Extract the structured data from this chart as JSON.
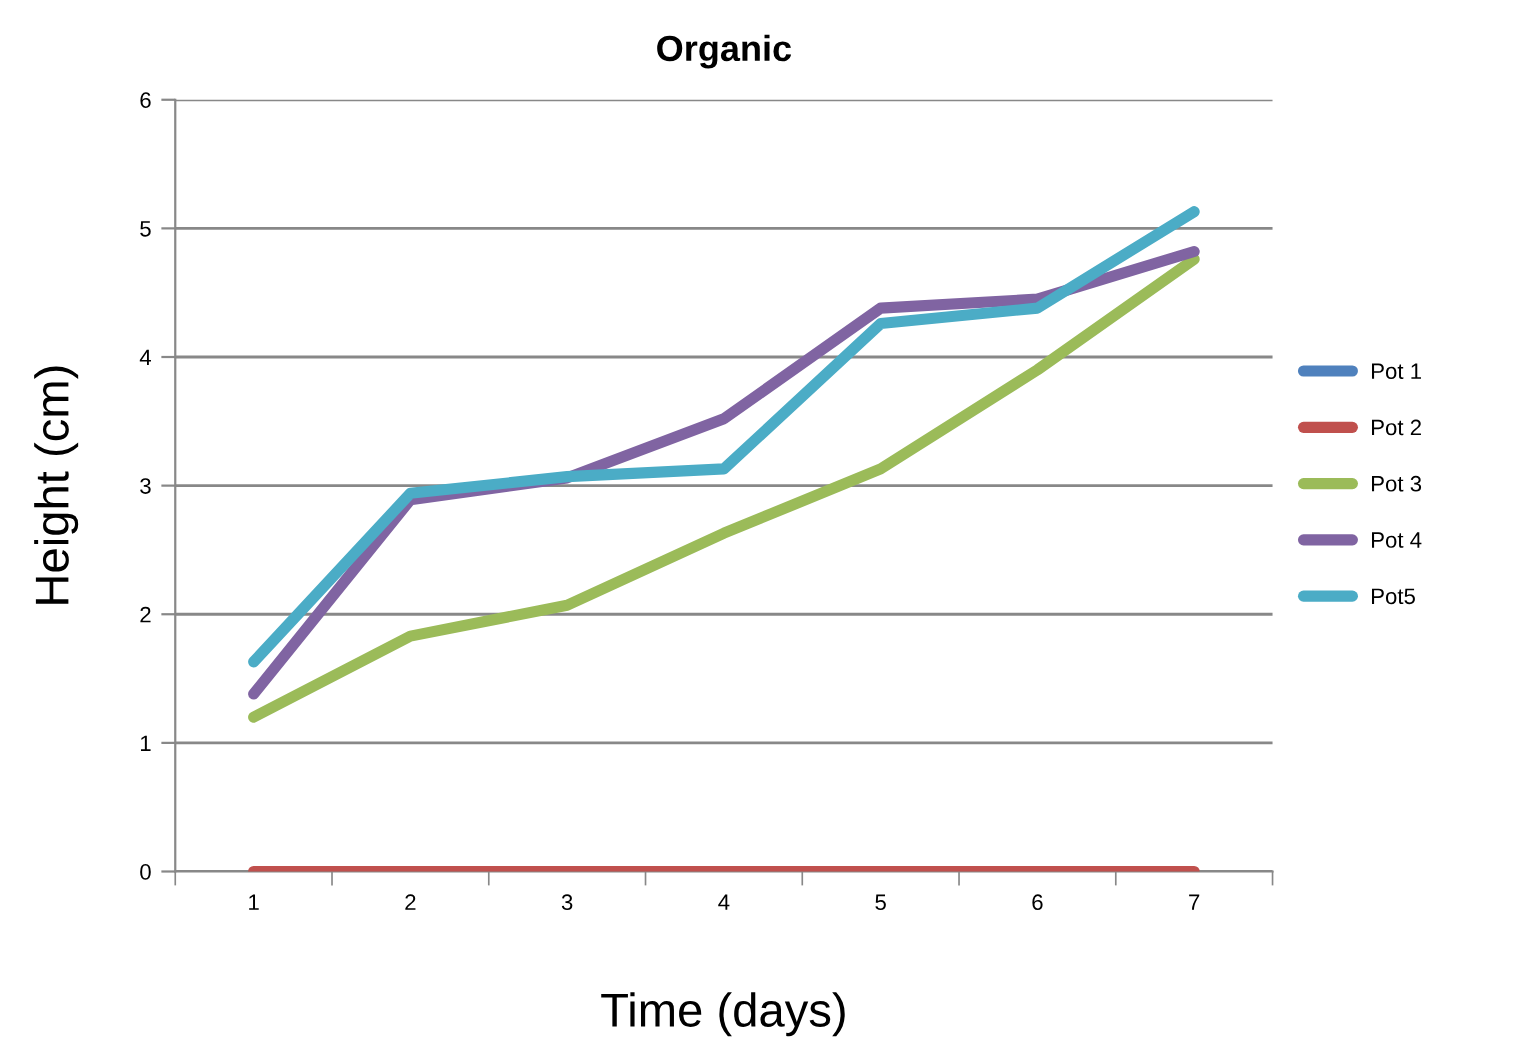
{
  "chart_data": {
    "type": "line",
    "title": "Organic",
    "xlabel": "Time (days)",
    "ylabel": "Height (cm)",
    "categories": [
      "1",
      "2",
      "3",
      "4",
      "5",
      "6",
      "7"
    ],
    "series": [
      {
        "name": "Pot 1",
        "color": "#4f81bd",
        "values": [
          null,
          null,
          null,
          null,
          null,
          null,
          null
        ]
      },
      {
        "name": "Pot 2",
        "color": "#c0504d",
        "values": [
          0,
          0,
          0,
          0,
          0,
          0,
          0
        ]
      },
      {
        "name": "Pot 3",
        "color": "#9bbb59",
        "values": [
          1.2,
          1.83,
          2.07,
          2.63,
          3.13,
          3.9,
          4.76
        ]
      },
      {
        "name": "Pot 4",
        "color": "#8064a2",
        "values": [
          1.38,
          2.89,
          3.06,
          3.52,
          4.38,
          4.45,
          4.82
        ]
      },
      {
        "name": "Pot5",
        "color": "#4bacc6",
        "values": [
          1.63,
          2.94,
          3.07,
          3.13,
          4.26,
          4.38,
          5.13
        ]
      }
    ],
    "ylim": [
      0,
      6
    ],
    "yticks": [
      0,
      1,
      2,
      3,
      4,
      5,
      6
    ],
    "grid": "y",
    "legend": "right",
    "marker": "none",
    "line_style": "solid"
  }
}
